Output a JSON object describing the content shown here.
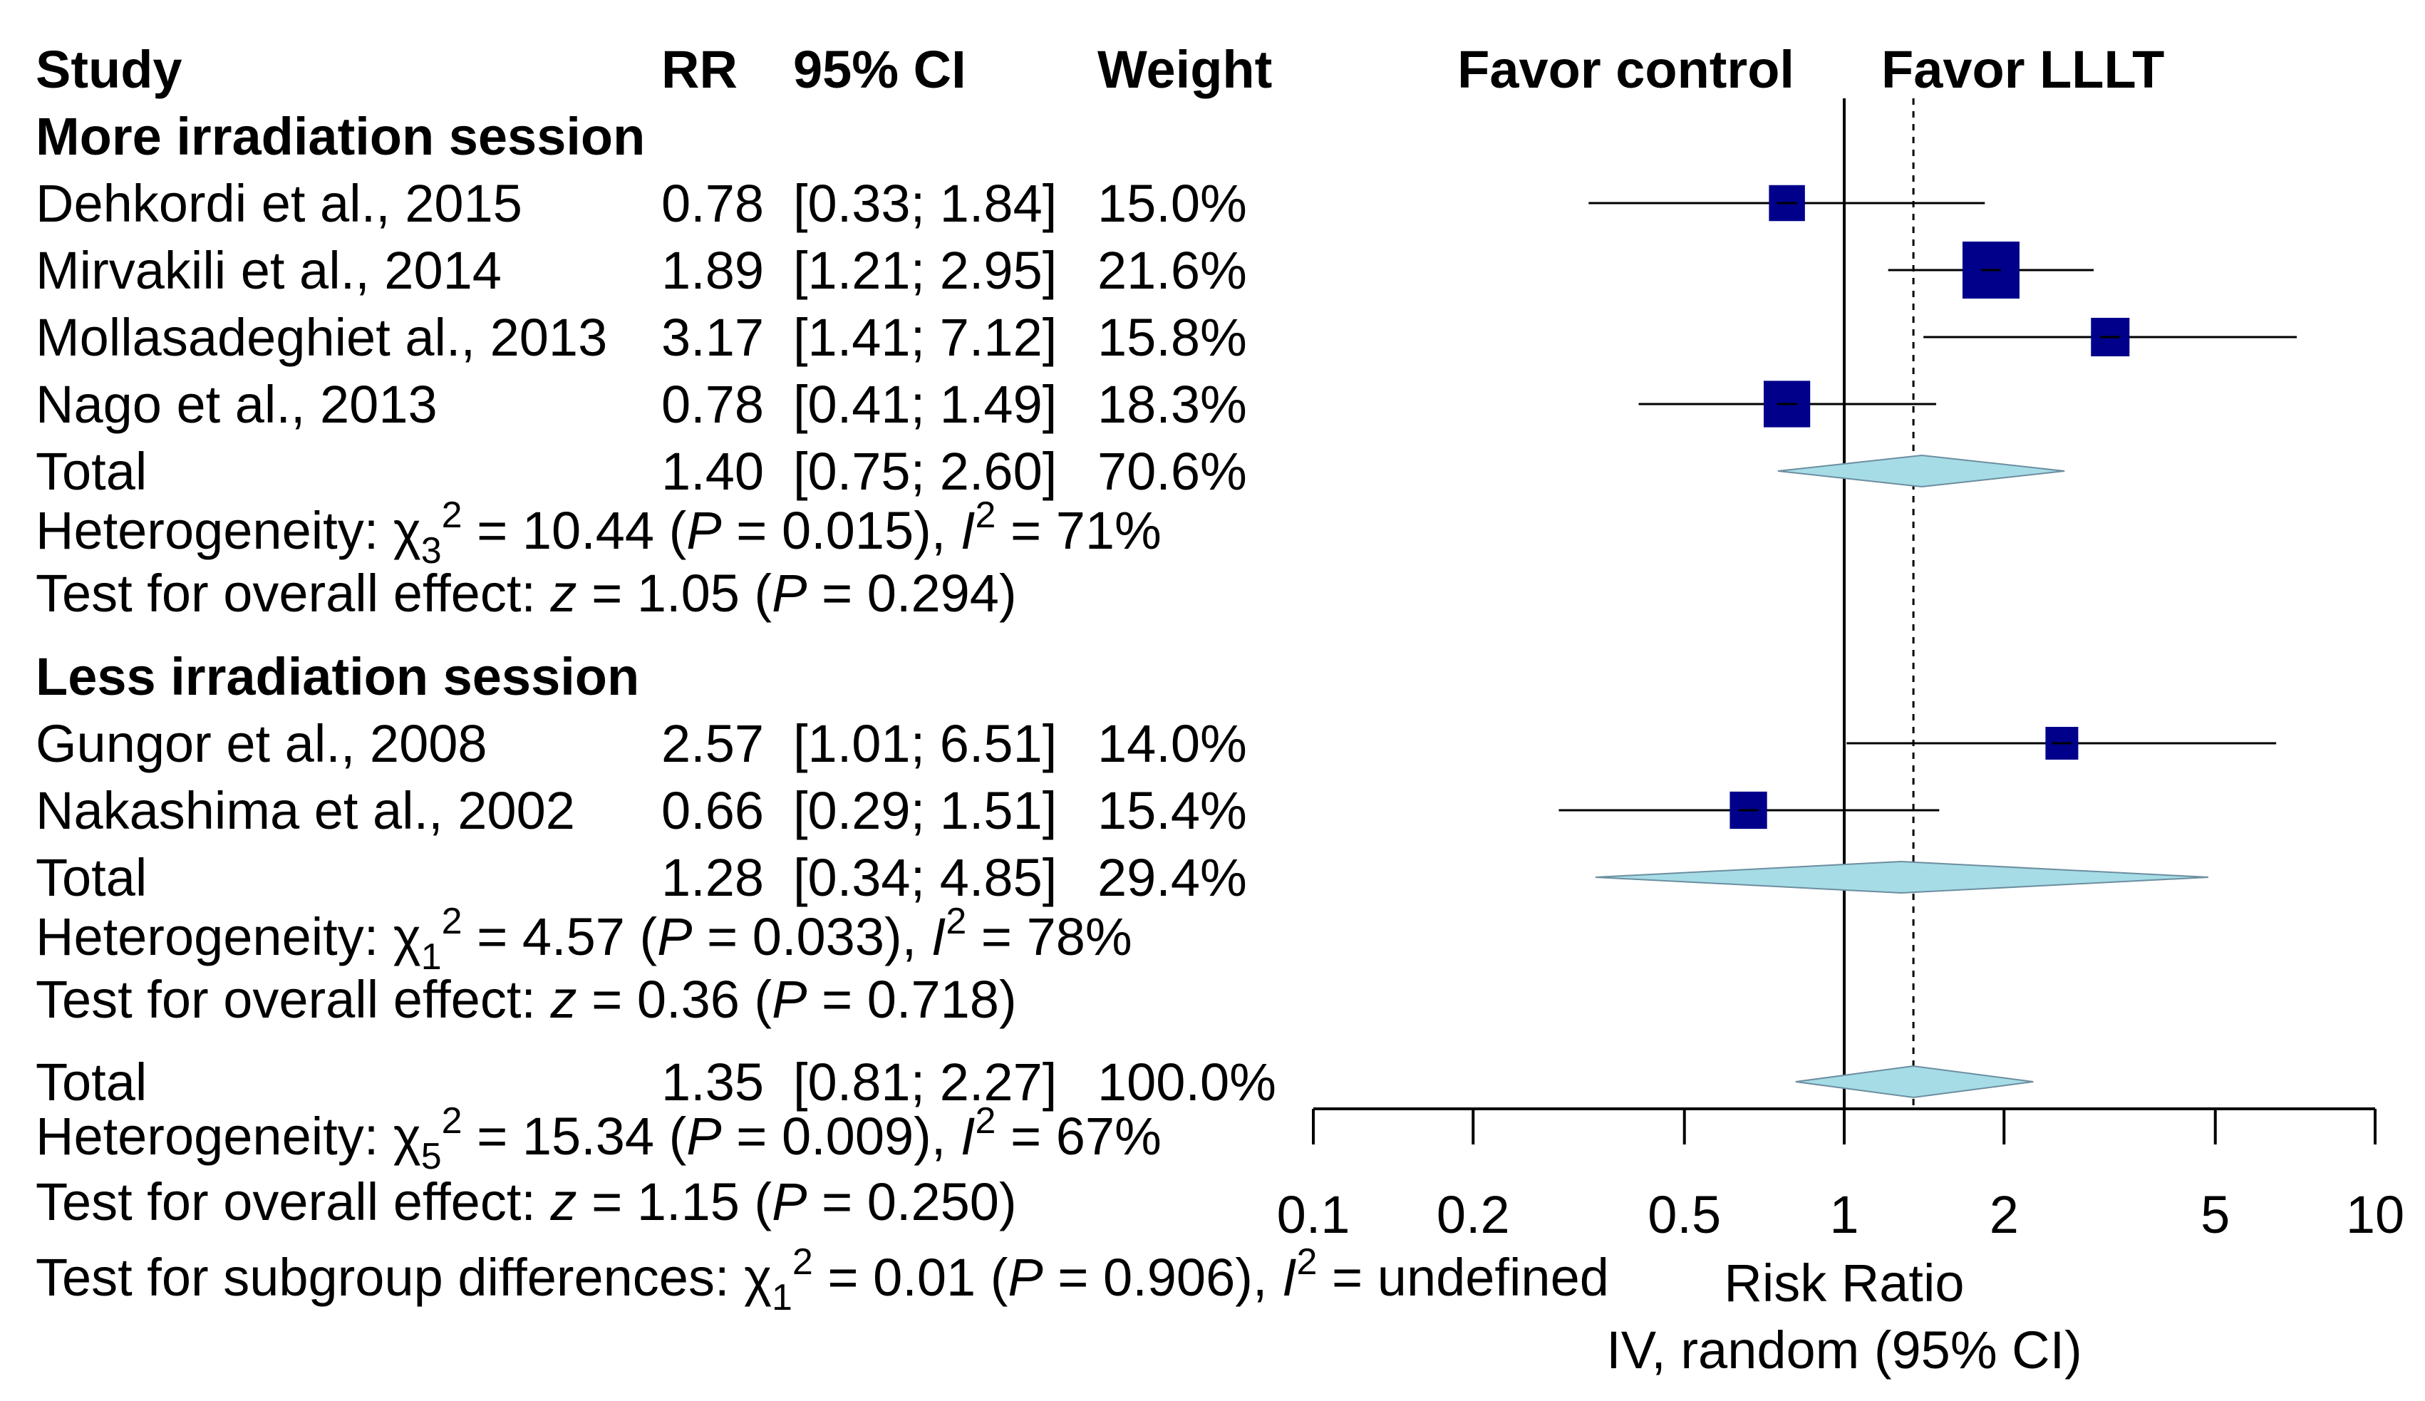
{
  "chart_data": {
    "type": "forest",
    "scale": "log",
    "xlim": [
      0.1,
      10
    ],
    "reference_value": 1,
    "overall_estimate": 1.35,
    "headers": {
      "study": "Study",
      "rr": "RR",
      "ci": "95% CI",
      "weight": "Weight",
      "favor_left": "Favor control",
      "favor_right": "Favor LLLT"
    },
    "x_ticks": [
      0.1,
      0.2,
      0.5,
      1,
      2,
      5,
      10
    ],
    "x_tick_labels": [
      "0.1",
      "0.2",
      "0.5",
      "1",
      "2",
      "5",
      "10"
    ],
    "xlabel": "Risk Ratio",
    "xlabel2": "IV, random (95% CI)",
    "subgroups": [
      {
        "name": "More irradiation session",
        "studies": [
          {
            "study": "Dehkordi et al., 2015",
            "rr": 0.78,
            "lower": 0.33,
            "upper": 1.84,
            "rr_text": "0.78",
            "ci_text": "[0.33; 1.84]",
            "weight_text": "15.0%"
          },
          {
            "study": "Mirvakili et al., 2014",
            "rr": 1.89,
            "lower": 1.21,
            "upper": 2.95,
            "rr_text": "1.89",
            "ci_text": "[1.21; 2.95]",
            "weight_text": "21.6%"
          },
          {
            "study": "Mollasadeghiet al., 2013",
            "rr": 3.17,
            "lower": 1.41,
            "upper": 7.12,
            "rr_text": "3.17",
            "ci_text": "[1.41; 7.12]",
            "weight_text": "15.8%"
          },
          {
            "study": "Nago et al., 2013",
            "rr": 0.78,
            "lower": 0.41,
            "upper": 1.49,
            "rr_text": "0.78",
            "ci_text": "[0.41; 1.49]",
            "weight_text": "18.3%"
          }
        ],
        "total": {
          "label": "Total",
          "rr": 1.4,
          "lower": 0.75,
          "upper": 2.6,
          "rr_text": "1.40",
          "ci_text": "[0.75; 2.60]",
          "weight_text": "70.6%"
        },
        "heterogeneity": {
          "prefix": "Heterogeneity: ",
          "chi_sub": "3",
          "chi_val": "10.44",
          "p": "0.015",
          "i2": "71%"
        },
        "overall": {
          "prefix": "Test for overall effect: ",
          "z": "1.05",
          "p": "0.294"
        }
      },
      {
        "name": "Less irradiation session",
        "studies": [
          {
            "study": "Gungor et al., 2008",
            "rr": 2.57,
            "lower": 1.01,
            "upper": 6.51,
            "rr_text": "2.57",
            "ci_text": "[1.01; 6.51]",
            "weight_text": "14.0%"
          },
          {
            "study": "Nakashima et al., 2002",
            "rr": 0.66,
            "lower": 0.29,
            "upper": 1.51,
            "rr_text": "0.66",
            "ci_text": "[0.29; 1.51]",
            "weight_text": "15.4%"
          }
        ],
        "total": {
          "label": "Total",
          "rr": 1.28,
          "lower": 0.34,
          "upper": 4.85,
          "rr_text": "1.28",
          "ci_text": "[0.34; 4.85]",
          "weight_text": "29.4%"
        },
        "heterogeneity": {
          "prefix": "Heterogeneity: ",
          "chi_sub": "1",
          "chi_val": "4.57",
          "p": "0.033",
          "i2": "78%"
        },
        "overall": {
          "prefix": "Test for overall effect: ",
          "z": "0.36",
          "p": "0.718"
        }
      }
    ],
    "grand_total": {
      "label": "Total",
      "rr": 1.35,
      "lower": 0.81,
      "upper": 2.27,
      "rr_text": "1.35",
      "ci_text": "[0.81; 2.27]",
      "weight_text": "100.0%"
    },
    "grand_heterogeneity": {
      "prefix": "Heterogeneity: ",
      "chi_sub": "5",
      "chi_val": "15.34",
      "p": "0.009",
      "i2": "67%"
    },
    "grand_overall": {
      "prefix": "Test for overall effect: ",
      "z": "1.15",
      "p": "0.250"
    },
    "subgroup_test": {
      "prefix": "Test for subgroup differences: ",
      "chi_sub": "1",
      "chi_val": "0.01",
      "p": "0.906"
    },
    "colors": {
      "square": "#00008b",
      "diamond": "#a6dce6",
      "line": "#000000"
    }
  }
}
